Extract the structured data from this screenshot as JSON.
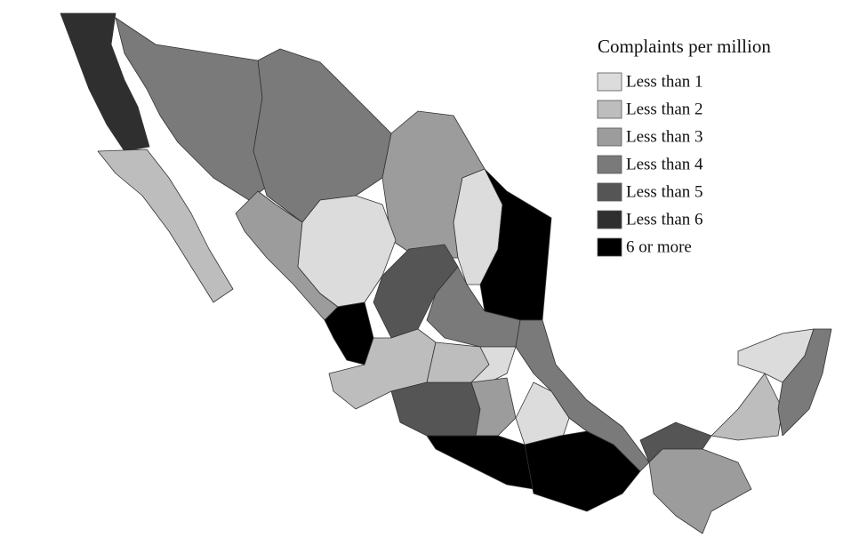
{
  "legend": {
    "title": "Complaints per million",
    "items": [
      {
        "label": "Less than 1",
        "color": "#dcdcdc"
      },
      {
        "label": "Less than 2",
        "color": "#bdbdbd"
      },
      {
        "label": "Less than 3",
        "color": "#9c9c9c"
      },
      {
        "label": "Less than 4",
        "color": "#7a7a7a"
      },
      {
        "label": "Less than 5",
        "color": "#555555"
      },
      {
        "label": "Less than 6",
        "color": "#2f2f2f"
      },
      {
        "label": "6 or more",
        "color": "#000000"
      }
    ]
  }
}
